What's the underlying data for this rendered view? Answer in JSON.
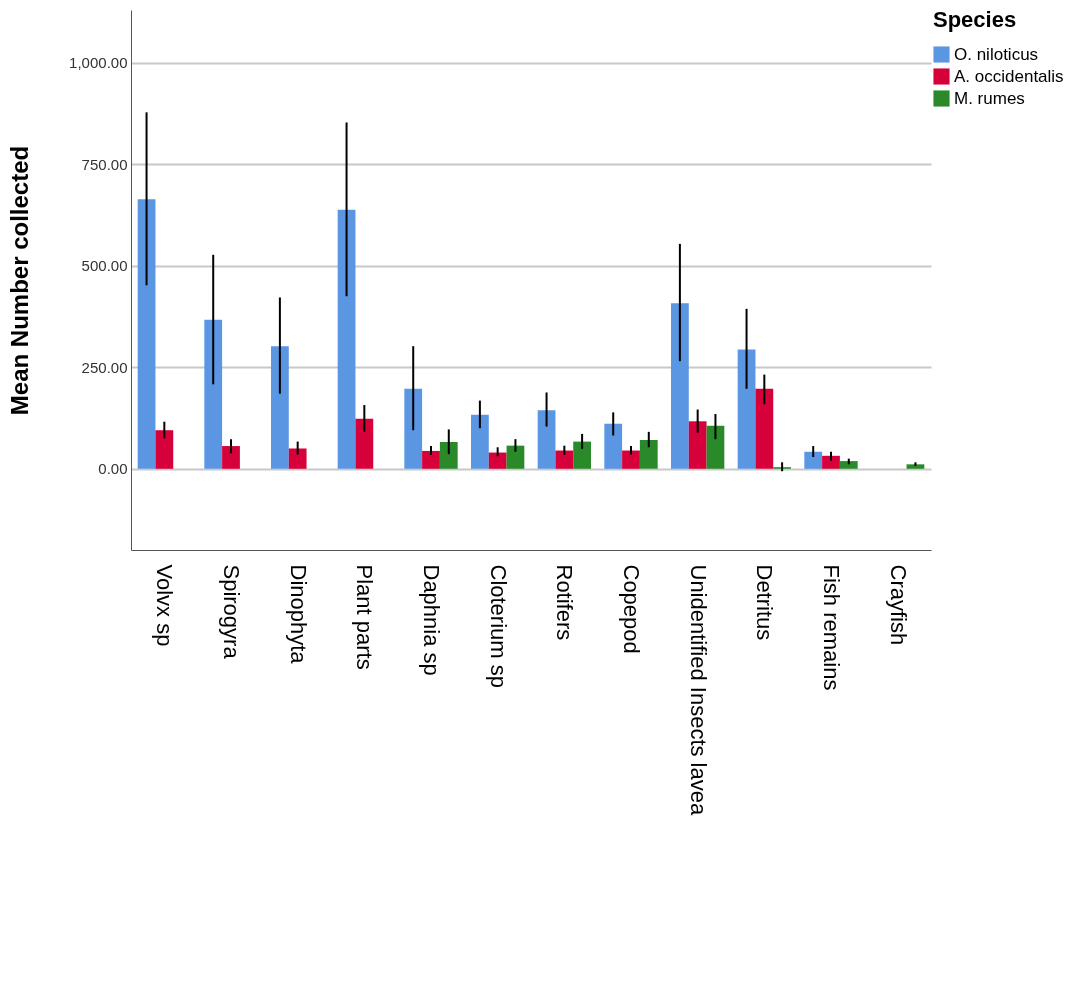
{
  "chart_data": {
    "type": "bar",
    "ylabel": "Mean Number collected",
    "legend_title": "Species",
    "categories": [
      "Volvx sp",
      "Spirogyra",
      "Dinophyta",
      "Plant parts",
      "Daphnia sp",
      "Cloterium sp",
      "Rotifers",
      "Copepod",
      "Unidentified Insects lavea",
      "Detritus",
      "Fish remains",
      "Crayfish"
    ],
    "series": [
      {
        "name": "O. niloticus",
        "color": "#5b96e3",
        "values": [
          664,
          367,
          302,
          638,
          197,
          133,
          144,
          111,
          408,
          294,
          42,
          0
        ],
        "errors": [
          [
            452,
            878
          ],
          [
            208,
            527
          ],
          [
            185,
            422
          ],
          [
            425,
            853
          ],
          [
            95,
            302
          ],
          [
            100,
            168
          ],
          [
            104,
            188
          ],
          [
            82,
            139
          ],
          [
            265,
            554
          ],
          [
            197,
            394
          ],
          [
            29,
            56
          ],
          null
        ]
      },
      {
        "name": "A. occidentalis",
        "color": "#d6003a",
        "values": [
          95,
          56,
          50,
          123,
          44,
          40,
          45,
          45,
          117,
          197,
          32,
          0
        ],
        "errors": [
          [
            75,
            116
          ],
          [
            38,
            73
          ],
          [
            35,
            67
          ],
          [
            91,
            157
          ],
          [
            34,
            56
          ],
          [
            31,
            53
          ],
          [
            34,
            57
          ],
          [
            35,
            56
          ],
          [
            89,
            146
          ],
          [
            159,
            232
          ],
          [
            20,
            42
          ],
          null
        ]
      },
      {
        "name": "M. rumes",
        "color": "#2a8a2a",
        "values": [
          0,
          0,
          0,
          0,
          66,
          57,
          67,
          71,
          106,
          4,
          19,
          11
        ],
        "errors": [
          null,
          null,
          null,
          null,
          [
            36,
            97
          ],
          [
            42,
            73
          ],
          [
            49,
            86
          ],
          [
            53,
            91
          ],
          [
            73,
            135
          ],
          [
            -6,
            16
          ],
          [
            11,
            25
          ],
          [
            7,
            16
          ]
        ]
      }
    ],
    "ylim": [
      -200,
      1130
    ],
    "yticks": [
      {
        "value": 0,
        "label": "0.00"
      },
      {
        "value": 250,
        "label": "250.00"
      },
      {
        "value": 500,
        "label": "500.00"
      },
      {
        "value": 750,
        "label": "750.00"
      },
      {
        "value": 1000,
        "label": "1,000.00"
      }
    ],
    "grid": "y",
    "legend": "top right"
  }
}
